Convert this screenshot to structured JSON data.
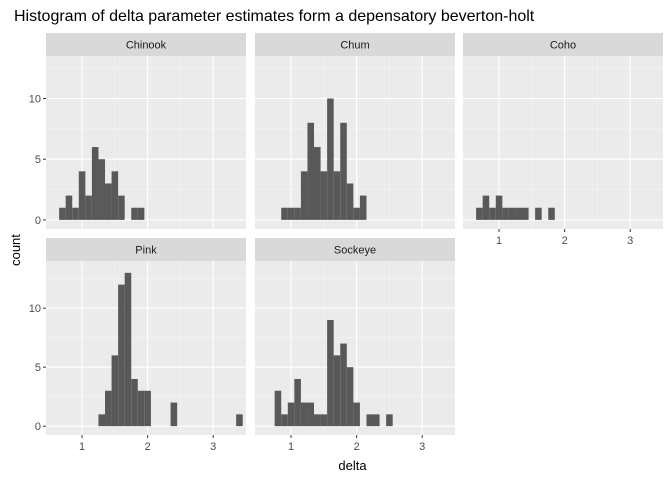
{
  "chart_data": {
    "type": "histogram-facets",
    "title": "Histogram of delta parameter estimates form a depensatory beverton-holt",
    "xlabel": "delta",
    "ylabel": "count",
    "x_ticks": [
      1,
      2,
      3
    ],
    "x_range": [
      0.45,
      3.5
    ],
    "bin_width": 0.1,
    "colors": {
      "panel_bg": "#EBEBEB",
      "grid_major": "#FFFFFF",
      "grid_minor": "#F5F5F5",
      "bar": "#595959",
      "strip_bg": "#D9D9D9",
      "text": "#000000",
      "tick_text": "#4D4D4D"
    },
    "rows": [
      {
        "y_range": [
          -0.75,
          13.5
        ],
        "y_ticks": [
          0,
          5,
          10
        ],
        "facets": [
          {
            "label": "Chinook",
            "bins": [
              {
                "x": 0.7,
                "count": 1
              },
              {
                "x": 0.8,
                "count": 2
              },
              {
                "x": 0.9,
                "count": 1
              },
              {
                "x": 1.0,
                "count": 4
              },
              {
                "x": 1.1,
                "count": 2
              },
              {
                "x": 1.2,
                "count": 6
              },
              {
                "x": 1.3,
                "count": 5
              },
              {
                "x": 1.4,
                "count": 3
              },
              {
                "x": 1.5,
                "count": 4
              },
              {
                "x": 1.6,
                "count": 2
              },
              {
                "x": 1.8,
                "count": 1
              },
              {
                "x": 1.9,
                "count": 1
              }
            ]
          },
          {
            "label": "Chum",
            "bins": [
              {
                "x": 0.9,
                "count": 1
              },
              {
                "x": 1.0,
                "count": 1
              },
              {
                "x": 1.1,
                "count": 1
              },
              {
                "x": 1.2,
                "count": 4
              },
              {
                "x": 1.3,
                "count": 8
              },
              {
                "x": 1.4,
                "count": 6
              },
              {
                "x": 1.5,
                "count": 4
              },
              {
                "x": 1.6,
                "count": 10
              },
              {
                "x": 1.7,
                "count": 4
              },
              {
                "x": 1.8,
                "count": 8
              },
              {
                "x": 1.9,
                "count": 3
              },
              {
                "x": 2.0,
                "count": 1
              },
              {
                "x": 2.1,
                "count": 2
              }
            ]
          },
          {
            "label": "Coho",
            "bins": [
              {
                "x": 0.7,
                "count": 1
              },
              {
                "x": 0.8,
                "count": 2
              },
              {
                "x": 0.9,
                "count": 1
              },
              {
                "x": 1.0,
                "count": 2
              },
              {
                "x": 1.1,
                "count": 1
              },
              {
                "x": 1.2,
                "count": 1
              },
              {
                "x": 1.3,
                "count": 1
              },
              {
                "x": 1.4,
                "count": 1
              },
              {
                "x": 1.6,
                "count": 1
              },
              {
                "x": 1.8,
                "count": 1
              }
            ]
          }
        ]
      },
      {
        "y_range": [
          -0.75,
          14.0
        ],
        "y_ticks": [
          0,
          5,
          10
        ],
        "facets": [
          {
            "label": "Pink",
            "bins": [
              {
                "x": 1.3,
                "count": 1
              },
              {
                "x": 1.4,
                "count": 3
              },
              {
                "x": 1.5,
                "count": 6
              },
              {
                "x": 1.6,
                "count": 12
              },
              {
                "x": 1.7,
                "count": 13
              },
              {
                "x": 1.8,
                "count": 4
              },
              {
                "x": 1.9,
                "count": 3
              },
              {
                "x": 2.0,
                "count": 3
              },
              {
                "x": 2.4,
                "count": 2
              },
              {
                "x": 3.4,
                "count": 1
              }
            ]
          },
          {
            "label": "Sockeye",
            "bins": [
              {
                "x": 0.8,
                "count": 3
              },
              {
                "x": 0.9,
                "count": 1
              },
              {
                "x": 1.0,
                "count": 2
              },
              {
                "x": 1.1,
                "count": 4
              },
              {
                "x": 1.2,
                "count": 2
              },
              {
                "x": 1.3,
                "count": 2
              },
              {
                "x": 1.4,
                "count": 1
              },
              {
                "x": 1.5,
                "count": 1
              },
              {
                "x": 1.6,
                "count": 9
              },
              {
                "x": 1.7,
                "count": 6
              },
              {
                "x": 1.8,
                "count": 7
              },
              {
                "x": 1.9,
                "count": 5
              },
              {
                "x": 2.0,
                "count": 2
              },
              {
                "x": 2.2,
                "count": 1
              },
              {
                "x": 2.3,
                "count": 1
              },
              {
                "x": 2.5,
                "count": 1
              }
            ]
          }
        ]
      }
    ]
  }
}
